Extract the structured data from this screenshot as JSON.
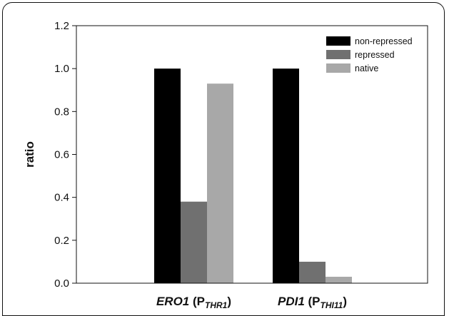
{
  "chart_data": {
    "type": "bar",
    "ylabel": "ratio",
    "ylim": [
      0,
      1.2
    ],
    "yticks": [
      "0.0",
      "0.2",
      "0.4",
      "0.6",
      "0.8",
      "1.0",
      "1.2"
    ],
    "categories": [
      {
        "gene": "ERO1",
        "open": " (P",
        "promoter": "THR1",
        "close": ")"
      },
      {
        "gene": "PDI1",
        "open": " (P",
        "promoter": "THI11",
        "close": ")"
      }
    ],
    "series": [
      {
        "name": "non-repressed",
        "color": "#000000",
        "values": [
          1.0,
          1.0
        ]
      },
      {
        "name": "repressed",
        "color": "#707070",
        "values": [
          0.38,
          0.1
        ]
      },
      {
        "name": "native",
        "color": "#a8a8a8",
        "values": [
          0.93,
          0.03
        ]
      }
    ],
    "legend_position": "top-right",
    "grid": false
  }
}
